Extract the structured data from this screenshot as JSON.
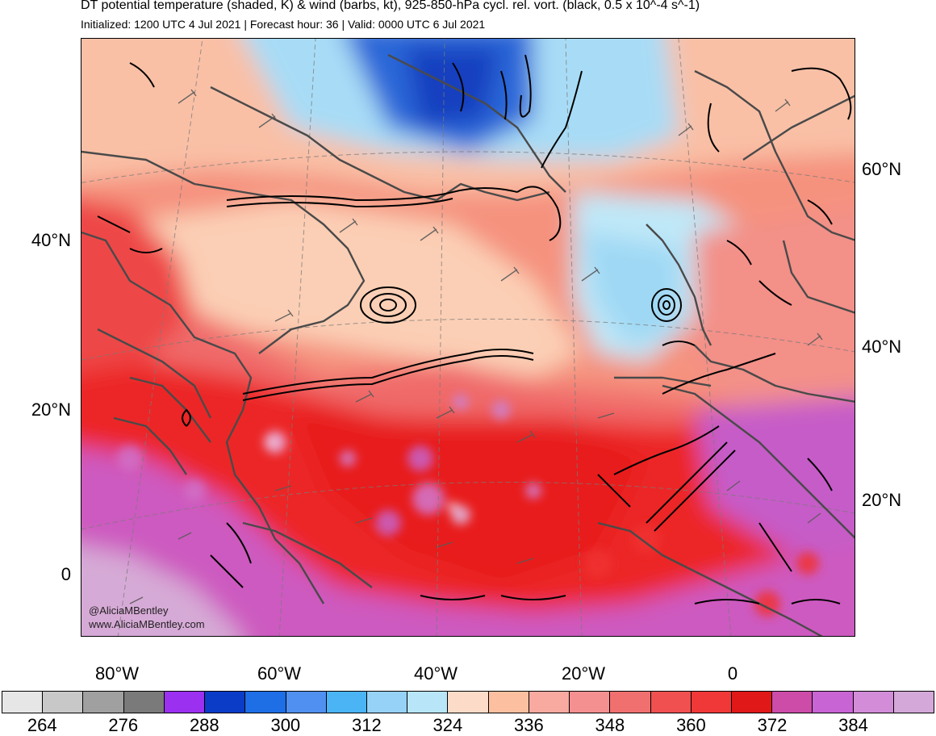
{
  "title": "DT potential temperature (shaded, K) & wind (barbs, kt), 925-850-hPa cycl. rel. vort. (black, 0.5 x 10^-4 s^-1)",
  "subtitle": "Initialized: 1200 UTC 4 Jul 2021 | Forecast hour: 36 | Valid: 0000 UTC 6 Jul 2021",
  "credit": {
    "handle": "@AliciaMBentley",
    "website": "www.AliciaMBentley.com"
  },
  "lon_labels": [
    "80°W",
    "60°W",
    "40°W",
    "20°W",
    "0"
  ],
  "lat_labels_left": [
    "40°N",
    "20°N",
    "0"
  ],
  "lat_labels_right": [
    "60°N",
    "40°N",
    "20°N"
  ],
  "colorbar": {
    "colors": [
      "#e6e6e6",
      "#c8c8c8",
      "#a0a0a0",
      "#7a7a7a",
      "#9b30f0",
      "#0a3cc8",
      "#1e6ee6",
      "#5090f0",
      "#4ab4f4",
      "#96d2f8",
      "#b8e6f8",
      "#fcdcc8",
      "#fcc0a0",
      "#f8aaa0",
      "#f49090",
      "#f07070",
      "#f05050",
      "#f03838",
      "#e01818",
      "#cc4ca8",
      "#c864d4",
      "#d28cd8",
      "#d4a8d8"
    ],
    "labels": [
      "264",
      "276",
      "288",
      "300",
      "312",
      "324",
      "336",
      "348",
      "360",
      "372",
      "384"
    ]
  },
  "regions": {
    "warm_tropics": "#ee2a2a",
    "subtropics": "#f27a7a",
    "midlat": "#f9b6a0",
    "cool_arctic": "#9fd9f5",
    "cold_core": "#2a64d8",
    "very_warm": "#cf64c8",
    "hot": "#d7a9d6"
  }
}
